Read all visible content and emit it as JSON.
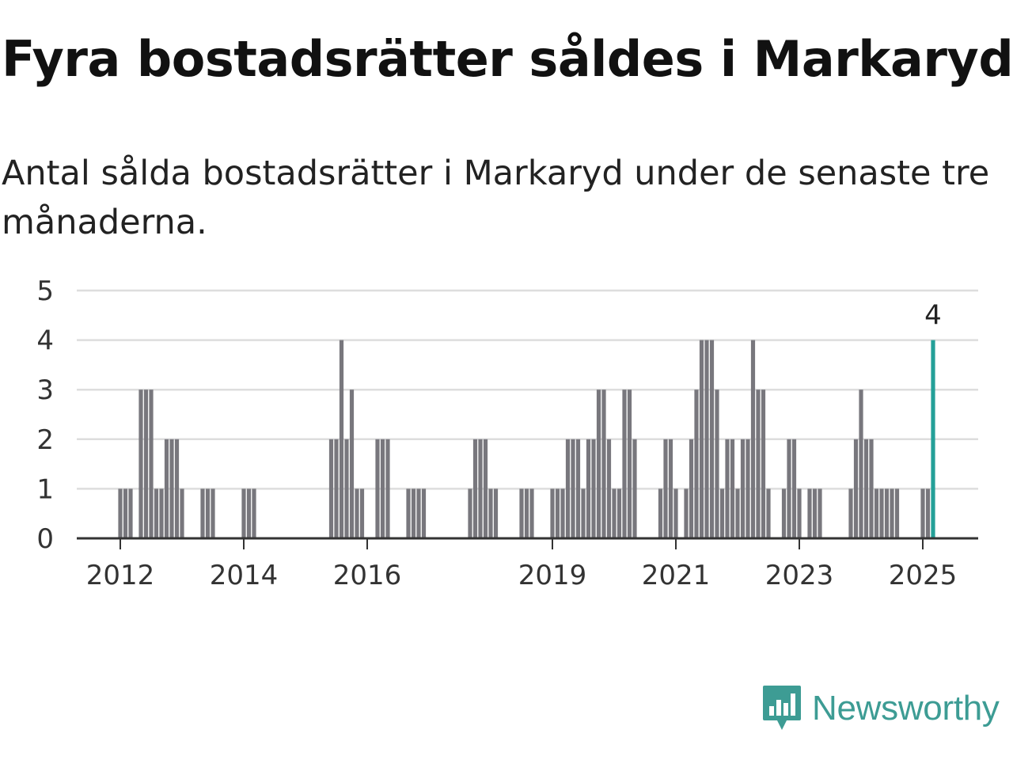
{
  "header": {
    "title": "Fyra bostadsrätter såldes i Markaryd",
    "subtitle": "Antal sålda bostadsrätter i Markaryd under de senaste tre månaderna."
  },
  "logo": {
    "text": "Newsworthy",
    "icon": "newsworthy-chart-icon",
    "color": "#3d9c94"
  },
  "colors": {
    "bar": "#78777d",
    "highlight": "#24a098",
    "grid": "#dddddd",
    "axis": "#333333"
  },
  "chart_data": {
    "type": "bar",
    "title": "Fyra bostadsrätter såldes i Markaryd",
    "subtitle": "Antal sålda bostadsrätter i Markaryd under de senaste tre månaderna.",
    "xlabel": "",
    "ylabel": "",
    "ylim": [
      0,
      5
    ],
    "yticks": [
      0,
      1,
      2,
      3,
      4,
      5
    ],
    "grid": true,
    "legend": "none",
    "x_unit": "month",
    "x_tick_labels": [
      "2012",
      "2014",
      "2016",
      "2019",
      "2021",
      "2023",
      "2025"
    ],
    "x_tick_dates": [
      "2012-01",
      "2014-01",
      "2016-01",
      "2019-01",
      "2021-01",
      "2023-01",
      "2025-01"
    ],
    "series": [
      {
        "values": [
          [
            "2012-01",
            1
          ],
          [
            "2012-02",
            1
          ],
          [
            "2012-03",
            1
          ],
          [
            "2012-05",
            3
          ],
          [
            "2012-06",
            3
          ],
          [
            "2012-07",
            3
          ],
          [
            "2012-08",
            1
          ],
          [
            "2012-09",
            1
          ],
          [
            "2012-10",
            2
          ],
          [
            "2012-11",
            2
          ],
          [
            "2012-12",
            2
          ],
          [
            "2013-01",
            1
          ],
          [
            "2013-05",
            1
          ],
          [
            "2013-06",
            1
          ],
          [
            "2013-07",
            1
          ],
          [
            "2014-01",
            1
          ],
          [
            "2014-02",
            1
          ],
          [
            "2014-03",
            1
          ],
          [
            "2015-06",
            2
          ],
          [
            "2015-07",
            2
          ],
          [
            "2015-08",
            4
          ],
          [
            "2015-09",
            2
          ],
          [
            "2015-10",
            3
          ],
          [
            "2015-11",
            1
          ],
          [
            "2015-12",
            1
          ],
          [
            "2016-03",
            2
          ],
          [
            "2016-04",
            2
          ],
          [
            "2016-05",
            2
          ],
          [
            "2016-09",
            1
          ],
          [
            "2016-10",
            1
          ],
          [
            "2016-11",
            1
          ],
          [
            "2016-12",
            1
          ],
          [
            "2017-09",
            1
          ],
          [
            "2017-10",
            2
          ],
          [
            "2017-11",
            2
          ],
          [
            "2017-12",
            2
          ],
          [
            "2018-01",
            1
          ],
          [
            "2018-02",
            1
          ],
          [
            "2018-07",
            1
          ],
          [
            "2018-08",
            1
          ],
          [
            "2018-09",
            1
          ],
          [
            "2019-01",
            1
          ],
          [
            "2019-02",
            1
          ],
          [
            "2019-03",
            1
          ],
          [
            "2019-04",
            2
          ],
          [
            "2019-05",
            2
          ],
          [
            "2019-06",
            2
          ],
          [
            "2019-07",
            1
          ],
          [
            "2019-08",
            2
          ],
          [
            "2019-09",
            2
          ],
          [
            "2019-10",
            3
          ],
          [
            "2019-11",
            3
          ],
          [
            "2019-12",
            2
          ],
          [
            "2020-01",
            1
          ],
          [
            "2020-02",
            1
          ],
          [
            "2020-03",
            3
          ],
          [
            "2020-04",
            3
          ],
          [
            "2020-05",
            2
          ],
          [
            "2020-10",
            1
          ],
          [
            "2020-11",
            2
          ],
          [
            "2020-12",
            2
          ],
          [
            "2021-01",
            1
          ],
          [
            "2021-03",
            1
          ],
          [
            "2021-04",
            2
          ],
          [
            "2021-05",
            3
          ],
          [
            "2021-06",
            4
          ],
          [
            "2021-07",
            4
          ],
          [
            "2021-08",
            4
          ],
          [
            "2021-09",
            3
          ],
          [
            "2021-10",
            1
          ],
          [
            "2021-11",
            2
          ],
          [
            "2021-12",
            2
          ],
          [
            "2022-01",
            1
          ],
          [
            "2022-02",
            2
          ],
          [
            "2022-03",
            2
          ],
          [
            "2022-04",
            4
          ],
          [
            "2022-05",
            3
          ],
          [
            "2022-06",
            3
          ],
          [
            "2022-07",
            1
          ],
          [
            "2022-10",
            1
          ],
          [
            "2022-11",
            2
          ],
          [
            "2022-12",
            2
          ],
          [
            "2023-01",
            1
          ],
          [
            "2023-03",
            1
          ],
          [
            "2023-04",
            1
          ],
          [
            "2023-05",
            1
          ],
          [
            "2023-11",
            1
          ],
          [
            "2023-12",
            2
          ],
          [
            "2024-01",
            3
          ],
          [
            "2024-02",
            2
          ],
          [
            "2024-03",
            2
          ],
          [
            "2024-04",
            1
          ],
          [
            "2024-05",
            1
          ],
          [
            "2024-06",
            1
          ],
          [
            "2024-07",
            1
          ],
          [
            "2024-08",
            1
          ],
          [
            "2025-01",
            1
          ],
          [
            "2025-02",
            1
          ],
          [
            "2025-03",
            4
          ]
        ]
      }
    ],
    "highlight": {
      "x": "2025-03",
      "value": 4,
      "label": "4"
    }
  }
}
